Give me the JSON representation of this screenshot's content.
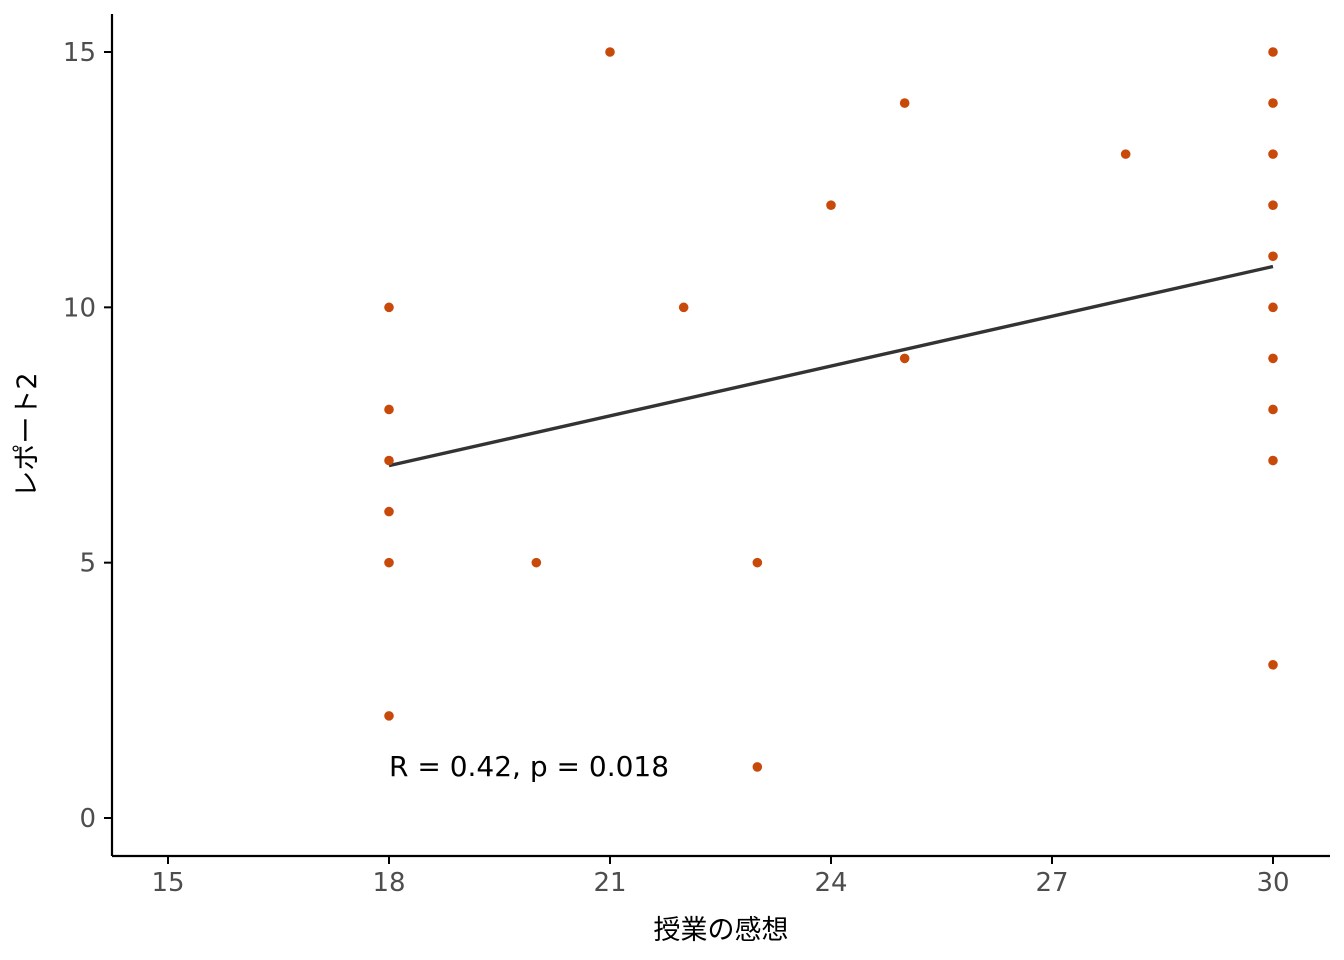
{
  "chart_data": {
    "type": "scatter",
    "title": "",
    "xlabel": "授業の感想",
    "ylabel": "レポート2",
    "xlim": [
      14.5,
      30.75
    ],
    "ylim": [
      -0.75,
      15.75
    ],
    "x_ticks": [
      15,
      18,
      21,
      24,
      27,
      30
    ],
    "y_ticks": [
      0,
      5,
      10,
      15
    ],
    "x_tick_labels": [
      "15",
      "18",
      "21",
      "24",
      "27",
      "30"
    ],
    "y_tick_labels": [
      "0",
      "5",
      "10",
      "15"
    ],
    "grid": false,
    "legend": "none",
    "series": [
      {
        "points": [
          {
            "x": 18,
            "y": 10
          },
          {
            "x": 18,
            "y": 8
          },
          {
            "x": 18,
            "y": 7
          },
          {
            "x": 18,
            "y": 6
          },
          {
            "x": 18,
            "y": 5
          },
          {
            "x": 18,
            "y": 2
          },
          {
            "x": 20,
            "y": 5
          },
          {
            "x": 21,
            "y": 15
          },
          {
            "x": 22,
            "y": 10
          },
          {
            "x": 23,
            "y": 5
          },
          {
            "x": 23,
            "y": 1
          },
          {
            "x": 24,
            "y": 12
          },
          {
            "x": 25,
            "y": 14
          },
          {
            "x": 25,
            "y": 9
          },
          {
            "x": 28,
            "y": 13
          },
          {
            "x": 30,
            "y": 15
          },
          {
            "x": 30,
            "y": 14
          },
          {
            "x": 30,
            "y": 13
          },
          {
            "x": 30,
            "y": 12
          },
          {
            "x": 30,
            "y": 11
          },
          {
            "x": 30,
            "y": 10
          },
          {
            "x": 30,
            "y": 9
          },
          {
            "x": 30,
            "y": 8
          },
          {
            "x": 30,
            "y": 7
          },
          {
            "x": 30,
            "y": 3
          }
        ]
      }
    ],
    "regression_line": {
      "x": [
        18,
        30
      ],
      "y": [
        6.9,
        10.8
      ]
    },
    "annotation": {
      "text": "R = 0.42, p = 0.018",
      "x": 18,
      "y": 1
    },
    "colors": {
      "points": "#c84a0a",
      "line": "#333333",
      "axis": "#000000",
      "tick_label": "#4d4d4d"
    }
  }
}
